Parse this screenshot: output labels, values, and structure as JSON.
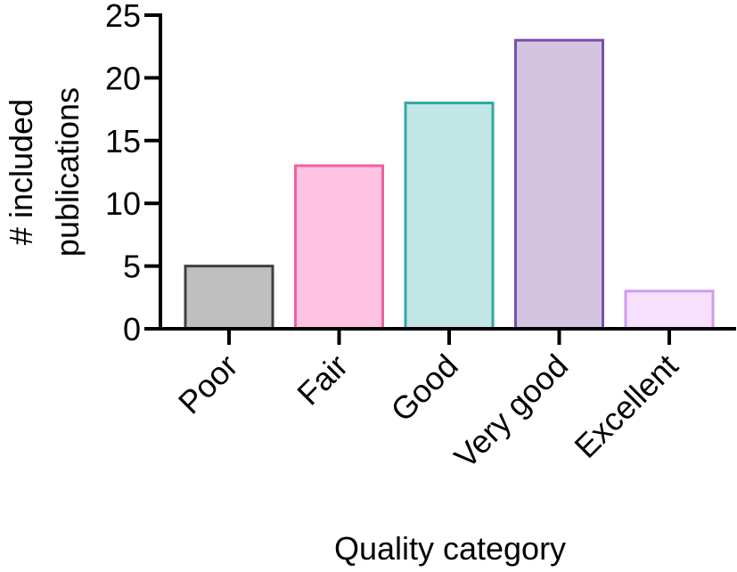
{
  "chart_data": {
    "type": "bar",
    "categories": [
      "Poor",
      "Fair",
      "Good",
      "Very good",
      "Excellent"
    ],
    "values": [
      5,
      13,
      18,
      23,
      3
    ],
    "title": "",
    "xlabel": "Quality category",
    "ylabel": [
      "# included",
      "publications"
    ],
    "ylim": [
      0,
      25
    ],
    "yticks": [
      0,
      5,
      10,
      15,
      20,
      25
    ],
    "grid": false,
    "legend": "none",
    "bar_fills": [
      "#bfbfbf",
      "#ffc2e0",
      "#c2e6e6",
      "#d4c4e2",
      "#f6e0fe"
    ],
    "bar_strokes": [
      "#404040",
      "#f0609f",
      "#2fa8a6",
      "#7a4fae",
      "#cf9cf2"
    ]
  }
}
